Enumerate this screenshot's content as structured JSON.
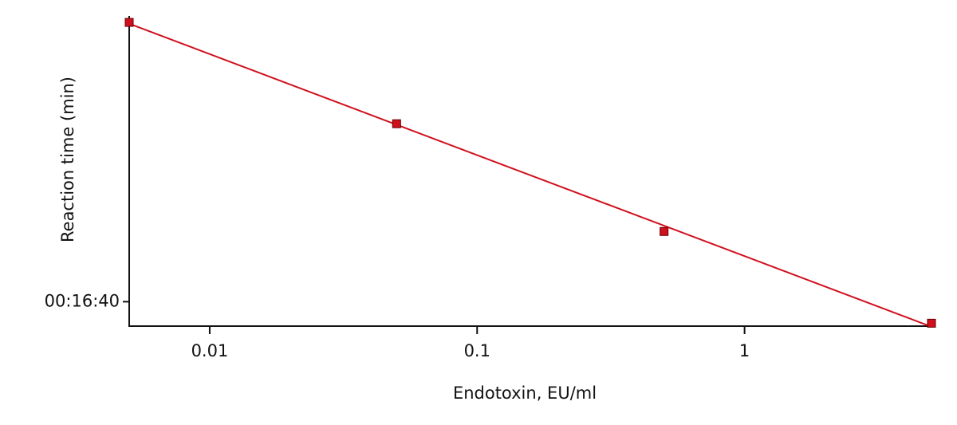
{
  "chart_data": {
    "type": "scatter",
    "x_label": "Endotoxin, EU/ml",
    "y_label": "Reaction time (min)",
    "x": [
      0.005,
      0.05,
      0.5,
      5
    ],
    "values": [
      60,
      37.7,
      23,
      15.1
    ],
    "color": "#d0101e",
    "x_log": true,
    "y_log": true,
    "xlim": [
      0.005,
      5
    ],
    "xticks": [
      0.01,
      0.1,
      1
    ],
    "ylim": [
      14.9,
      61.8
    ],
    "yticks": [
      {
        "value": 16.6667,
        "label": "00:16:40"
      }
    ],
    "trend_line": true
  }
}
